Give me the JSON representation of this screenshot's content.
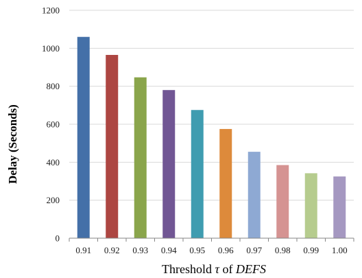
{
  "chart_data": {
    "type": "bar",
    "categories": [
      "0.91",
      "0.92",
      "0.93",
      "0.94",
      "0.95",
      "0.96",
      "0.97",
      "0.98",
      "0.99",
      "1.00"
    ],
    "values": [
      1060,
      965,
      847,
      780,
      675,
      575,
      455,
      385,
      342,
      325
    ],
    "colors": [
      "#4470a8",
      "#ad4642",
      "#8aa54b",
      "#715694",
      "#3f9cb0",
      "#dd8a3b",
      "#8ea9d3",
      "#d59392",
      "#b6cc8e",
      "#a598c1"
    ],
    "ylabel": "Delay (Seconds)",
    "xlabel": {
      "prefix": "Threshold ",
      "tau": "τ",
      "middle": " of ",
      "name": "DEFS"
    },
    "ylim": [
      0,
      1200
    ],
    "yticks": [
      0,
      200,
      400,
      600,
      800,
      1000,
      1200
    ],
    "grid": true
  }
}
